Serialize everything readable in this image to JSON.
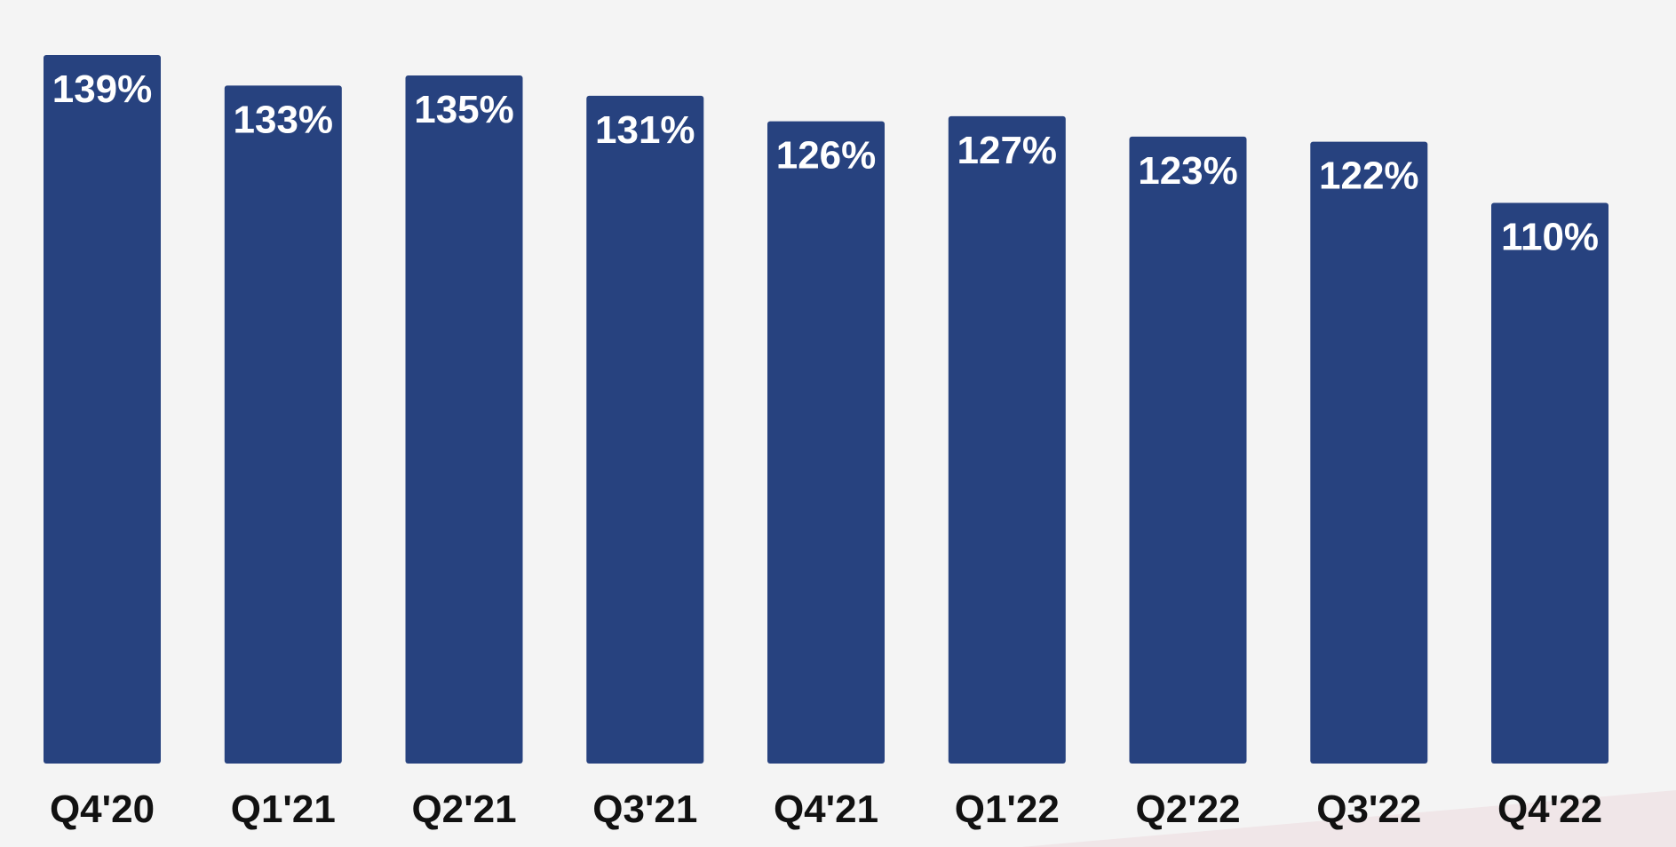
{
  "chart_data": {
    "type": "bar",
    "categories": [
      "Q4'20",
      "Q1'21",
      "Q2'21",
      "Q3'21",
      "Q4'21",
      "Q1'22",
      "Q2'22",
      "Q3'22",
      "Q4'22"
    ],
    "values": [
      139,
      133,
      135,
      131,
      126,
      127,
      123,
      122,
      110
    ],
    "value_labels": [
      "139%",
      "133%",
      "135%",
      "131%",
      "126%",
      "127%",
      "123%",
      "122%",
      "110%"
    ],
    "title": "",
    "xlabel": "",
    "ylabel": "",
    "ylim": [
      0,
      139
    ],
    "grid": false,
    "legend": "none",
    "colors": {
      "bar": "#27427f",
      "background": "#f4f4f4",
      "value_label": "#ffffff",
      "tick_label": "#111111"
    }
  }
}
